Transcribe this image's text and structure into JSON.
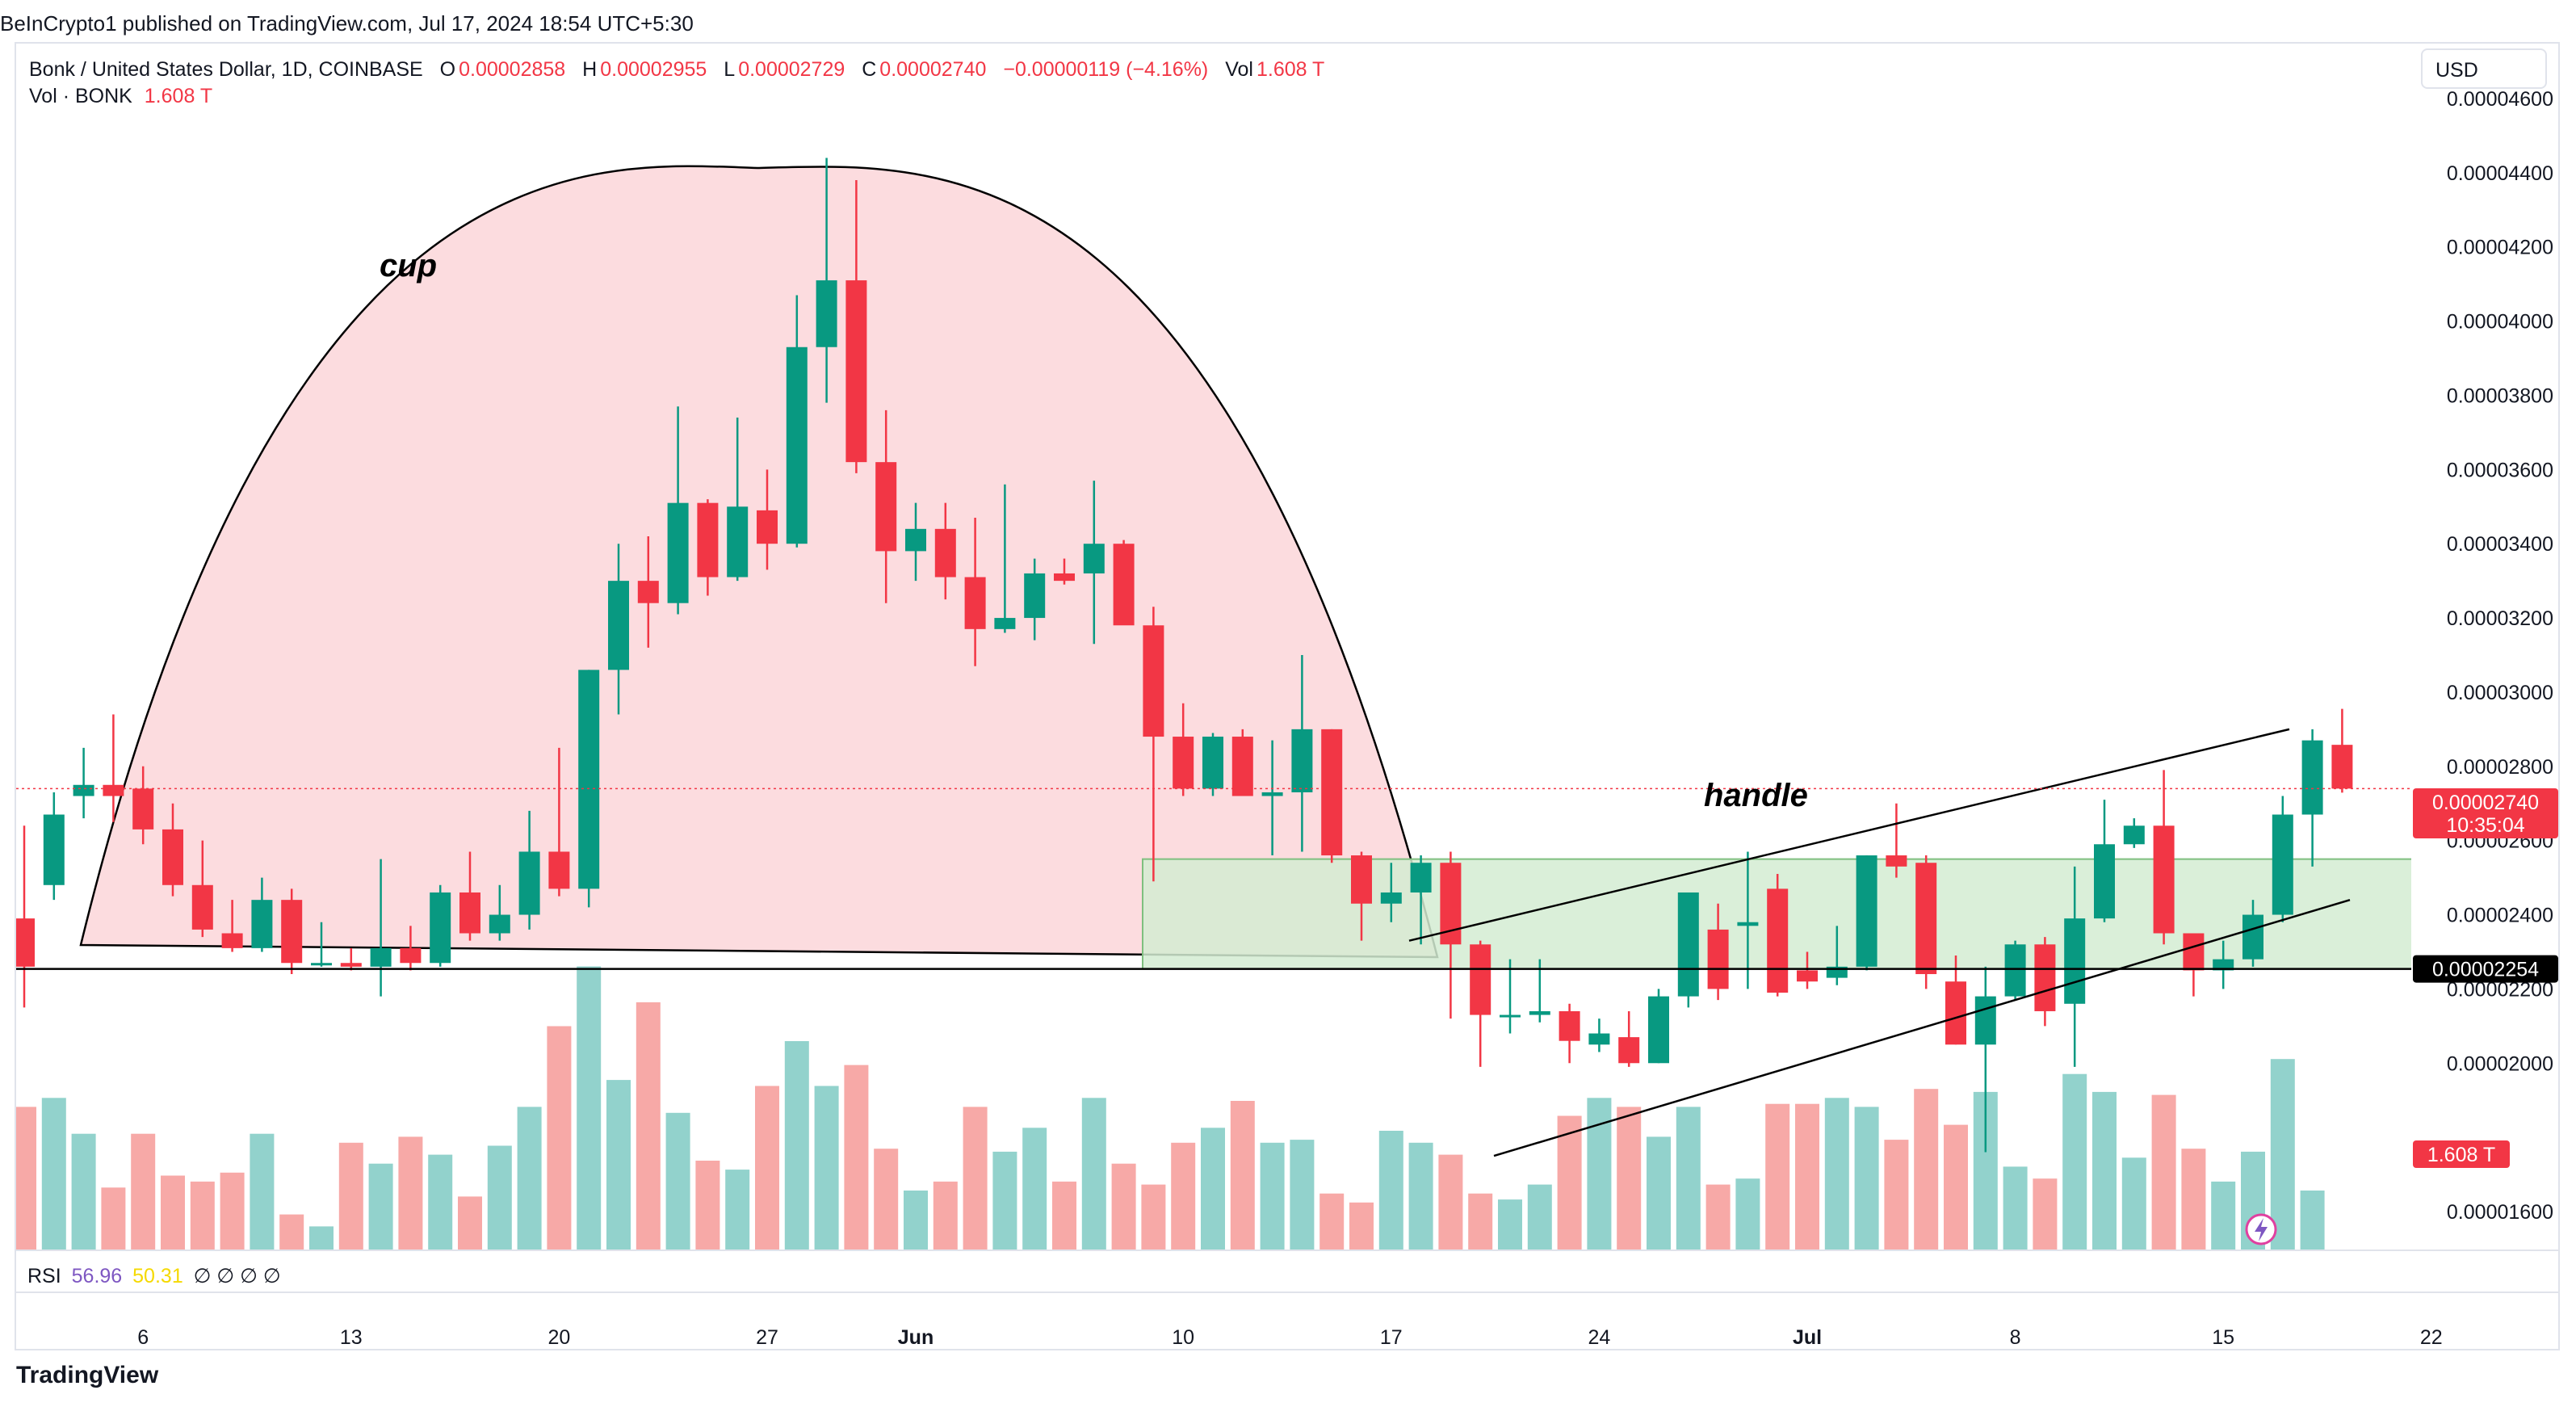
{
  "header": {
    "publisher_line": "BeInCrypto1 published on TradingView.com, Jul 17, 2024 18:54 UTC+5:30"
  },
  "legend": {
    "symbol": "Bonk / United States Dollar, 1D, COINBASE",
    "o_label": "O",
    "o_value": "0.00002858",
    "h_label": "H",
    "h_value": "0.00002955",
    "l_label": "L",
    "l_value": "0.00002729",
    "c_label": "C",
    "c_value": "0.00002740",
    "change": "−0.00000119 (−4.16%)",
    "vol_label": "Vol",
    "vol_value": "1.608 T",
    "vol_series_label": "Vol · BONK",
    "vol_series_value": "1.608 T"
  },
  "currency_button": "USD",
  "annotations": {
    "cup": "cup",
    "handle": "handle"
  },
  "price_tag": {
    "price": "0.00002740",
    "countdown": "10:35:04"
  },
  "level_tag": "0.00002254",
  "volume_tag": "1.608 T",
  "rsi": {
    "label": "RSI",
    "value1": "56.96",
    "value2": "50.31",
    "placeholders": "∅ ∅ ∅ ∅"
  },
  "footer": {
    "logo_text": "TradingView"
  },
  "colors": {
    "up": "#089981",
    "down": "#f23645",
    "vol_up": "#92d2cc",
    "vol_down": "#f7a9a7",
    "cup_fill": "#fcdcdf",
    "zone_fill": "#d4ecd2"
  },
  "chart_data": {
    "type": "candlestick",
    "title": "Bonk / United States Dollar, 1D, COINBASE",
    "y_ticks": [
      "0.00001600",
      "0.00002000",
      "0.00002200",
      "0.00002400",
      "0.00002600",
      "0.00002800",
      "0.00003000",
      "0.00003200",
      "0.00003400",
      "0.00003600",
      "0.00003800",
      "0.00004000",
      "0.00004200",
      "0.00004400",
      "0.00004600"
    ],
    "y_tick_values": [
      1.6e-05,
      2e-05,
      2.2e-05,
      2.4e-05,
      2.6e-05,
      2.8e-05,
      3e-05,
      3.2e-05,
      3.4e-05,
      3.6e-05,
      3.8e-05,
      4e-05,
      4.2e-05,
      4.4e-05,
      4.6e-05
    ],
    "x_ticks": [
      {
        "label": "6",
        "index": 4
      },
      {
        "label": "13",
        "index": 11
      },
      {
        "label": "20",
        "index": 18
      },
      {
        "label": "27",
        "index": 25
      },
      {
        "label": "Jun",
        "index": 30
      },
      {
        "label": "10",
        "index": 39
      },
      {
        "label": "17",
        "index": 46
      },
      {
        "label": "24",
        "index": 53
      },
      {
        "label": "Jul",
        "index": 60
      },
      {
        "label": "8",
        "index": 67
      },
      {
        "label": "15",
        "index": 74
      },
      {
        "label": "22",
        "index": 81
      }
    ],
    "y_range": [
      1.55e-05,
      4.7e-05
    ],
    "candles": [
      [
        2.39e-05,
        2.64e-05,
        2.15e-05,
        2.26e-05
      ],
      [
        2.48e-05,
        2.73e-05,
        2.44e-05,
        2.67e-05
      ],
      [
        2.72e-05,
        2.85e-05,
        2.66e-05,
        2.75e-05
      ],
      [
        2.75e-05,
        2.94e-05,
        2.65e-05,
        2.72e-05
      ],
      [
        2.74e-05,
        2.8e-05,
        2.59e-05,
        2.63e-05
      ],
      [
        2.63e-05,
        2.7e-05,
        2.45e-05,
        2.48e-05
      ],
      [
        2.48e-05,
        2.6e-05,
        2.34e-05,
        2.36e-05
      ],
      [
        2.35e-05,
        2.44e-05,
        2.3e-05,
        2.31e-05
      ],
      [
        2.31e-05,
        2.5e-05,
        2.3e-05,
        2.44e-05
      ],
      [
        2.44e-05,
        2.47e-05,
        2.24e-05,
        2.27e-05
      ],
      [
        2.27e-05,
        2.38e-05,
        2.26e-05,
        2.27e-05
      ],
      [
        2.27e-05,
        2.31e-05,
        2.25e-05,
        2.26e-05
      ],
      [
        2.26e-05,
        2.55e-05,
        2.18e-05,
        2.31e-05
      ],
      [
        2.31e-05,
        2.37e-05,
        2.25e-05,
        2.27e-05
      ],
      [
        2.27e-05,
        2.48e-05,
        2.26e-05,
        2.46e-05
      ],
      [
        2.46e-05,
        2.57e-05,
        2.33e-05,
        2.35e-05
      ],
      [
        2.35e-05,
        2.48e-05,
        2.33e-05,
        2.4e-05
      ],
      [
        2.4e-05,
        2.68e-05,
        2.36e-05,
        2.57e-05
      ],
      [
        2.57e-05,
        2.85e-05,
        2.45e-05,
        2.47e-05
      ],
      [
        2.47e-05,
        3.06e-05,
        2.42e-05,
        3.06e-05
      ],
      [
        3.06e-05,
        3.4e-05,
        2.94e-05,
        3.3e-05
      ],
      [
        3.3e-05,
        3.42e-05,
        3.12e-05,
        3.24e-05
      ],
      [
        3.24e-05,
        3.77e-05,
        3.21e-05,
        3.51e-05
      ],
      [
        3.51e-05,
        3.52e-05,
        3.26e-05,
        3.31e-05
      ],
      [
        3.31e-05,
        3.74e-05,
        3.3e-05,
        3.5e-05
      ],
      [
        3.49e-05,
        3.6e-05,
        3.33e-05,
        3.4e-05
      ],
      [
        3.4e-05,
        4.07e-05,
        3.39e-05,
        3.93e-05
      ],
      [
        3.93e-05,
        4.44e-05,
        3.78e-05,
        4.11e-05
      ],
      [
        4.11e-05,
        4.38e-05,
        3.59e-05,
        3.62e-05
      ],
      [
        3.62e-05,
        3.76e-05,
        3.24e-05,
        3.38e-05
      ],
      [
        3.38e-05,
        3.51e-05,
        3.3e-05,
        3.44e-05
      ],
      [
        3.44e-05,
        3.51e-05,
        3.25e-05,
        3.31e-05
      ],
      [
        3.31e-05,
        3.47e-05,
        3.07e-05,
        3.17e-05
      ],
      [
        3.17e-05,
        3.56e-05,
        3.16e-05,
        3.2e-05
      ],
      [
        3.2e-05,
        3.36e-05,
        3.14e-05,
        3.32e-05
      ],
      [
        3.32e-05,
        3.36e-05,
        3.29e-05,
        3.3e-05
      ],
      [
        3.32e-05,
        3.57e-05,
        3.13e-05,
        3.4e-05
      ],
      [
        3.4e-05,
        3.41e-05,
        3.19e-05,
        3.18e-05
      ],
      [
        3.18e-05,
        3.23e-05,
        2.49e-05,
        2.88e-05
      ],
      [
        2.88e-05,
        2.97e-05,
        2.72e-05,
        2.74e-05
      ],
      [
        2.74e-05,
        2.89e-05,
        2.72e-05,
        2.88e-05
      ],
      [
        2.88e-05,
        2.9e-05,
        2.72e-05,
        2.72e-05
      ],
      [
        2.72e-05,
        2.87e-05,
        2.56e-05,
        2.73e-05
      ],
      [
        2.73e-05,
        3.1e-05,
        2.57e-05,
        2.9e-05
      ],
      [
        2.9e-05,
        2.9e-05,
        2.54e-05,
        2.56e-05
      ],
      [
        2.56e-05,
        2.57e-05,
        2.33e-05,
        2.43e-05
      ],
      [
        2.43e-05,
        2.54e-05,
        2.38e-05,
        2.46e-05
      ],
      [
        2.46e-05,
        2.56e-05,
        2.32e-05,
        2.54e-05
      ],
      [
        2.54e-05,
        2.57e-05,
        2.12e-05,
        2.32e-05
      ],
      [
        2.32e-05,
        2.33e-05,
        1.99e-05,
        2.13e-05
      ],
      [
        2.13e-05,
        2.28e-05,
        2.08e-05,
        2.13e-05
      ],
      [
        2.13e-05,
        2.28e-05,
        2.11e-05,
        2.14e-05
      ],
      [
        2.14e-05,
        2.16e-05,
        2e-05,
        2.06e-05
      ],
      [
        2.05e-05,
        2.12e-05,
        2.03e-05,
        2.08e-05
      ],
      [
        2.07e-05,
        2.14e-05,
        1.99e-05,
        2e-05
      ],
      [
        2e-05,
        2.2e-05,
        2e-05,
        2.18e-05
      ],
      [
        2.18e-05,
        2.46e-05,
        2.15e-05,
        2.46e-05
      ],
      [
        2.36e-05,
        2.43e-05,
        2.17e-05,
        2.2e-05
      ],
      [
        2.37e-05,
        2.57e-05,
        2.2e-05,
        2.38e-05
      ],
      [
        2.47e-05,
        2.51e-05,
        2.18e-05,
        2.19e-05
      ],
      [
        2.25e-05,
        2.3e-05,
        2.2e-05,
        2.22e-05
      ],
      [
        2.23e-05,
        2.37e-05,
        2.21e-05,
        2.26e-05
      ],
      [
        2.26e-05,
        2.56e-05,
        2.25e-05,
        2.56e-05
      ],
      [
        2.56e-05,
        2.7e-05,
        2.5e-05,
        2.53e-05
      ],
      [
        2.54e-05,
        2.56e-05,
        2.2e-05,
        2.24e-05
      ],
      [
        2.22e-05,
        2.29e-05,
        2.05e-05,
        2.05e-05
      ],
      [
        2.05e-05,
        2.26e-05,
        1.76e-05,
        2.18e-05
      ],
      [
        2.18e-05,
        2.33e-05,
        2.17e-05,
        2.32e-05
      ],
      [
        2.32e-05,
        2.34e-05,
        2.1e-05,
        2.14e-05
      ],
      [
        2.16e-05,
        2.53e-05,
        1.99e-05,
        2.39e-05
      ],
      [
        2.39e-05,
        2.71e-05,
        2.38e-05,
        2.59e-05
      ],
      [
        2.59e-05,
        2.66e-05,
        2.58e-05,
        2.64e-05
      ],
      [
        2.64e-05,
        2.79e-05,
        2.32e-05,
        2.35e-05
      ],
      [
        2.35e-05,
        2.35e-05,
        2.18e-05,
        2.25e-05
      ],
      [
        2.25e-05,
        2.33e-05,
        2.2e-05,
        2.28e-05
      ],
      [
        2.28e-05,
        2.44e-05,
        2.26e-05,
        2.4e-05
      ],
      [
        2.4e-05,
        2.72e-05,
        2.38e-05,
        2.67e-05
      ],
      [
        2.67e-05,
        2.9e-05,
        2.53e-05,
        2.87e-05
      ],
      [
        2.858e-05,
        2.955e-05,
        2.729e-05,
        2.74e-05
      ]
    ],
    "volume_relative": [
      0.48,
      0.51,
      0.39,
      0.21,
      0.39,
      0.25,
      0.23,
      0.26,
      0.39,
      0.12,
      0.08,
      0.36,
      0.29,
      0.38,
      0.32,
      0.18,
      0.35,
      0.48,
      0.75,
      0.95,
      0.57,
      0.83,
      0.46,
      0.3,
      0.27,
      0.55,
      0.7,
      0.55,
      0.62,
      0.34,
      0.2,
      0.23,
      0.48,
      0.33,
      0.41,
      0.23,
      0.51,
      0.29,
      0.22,
      0.36,
      0.41,
      0.5,
      0.36,
      0.37,
      0.19,
      0.16,
      0.4,
      0.36,
      0.32,
      0.19,
      0.17,
      0.22,
      0.45,
      0.51,
      0.48,
      0.38,
      0.48,
      0.22,
      0.24,
      0.49,
      0.49,
      0.51,
      0.48,
      0.37,
      0.54,
      0.42,
      0.53,
      0.28,
      0.24,
      0.59,
      0.53,
      0.31,
      0.52,
      0.34,
      0.23,
      0.33,
      0.64,
      0.2
    ]
  }
}
